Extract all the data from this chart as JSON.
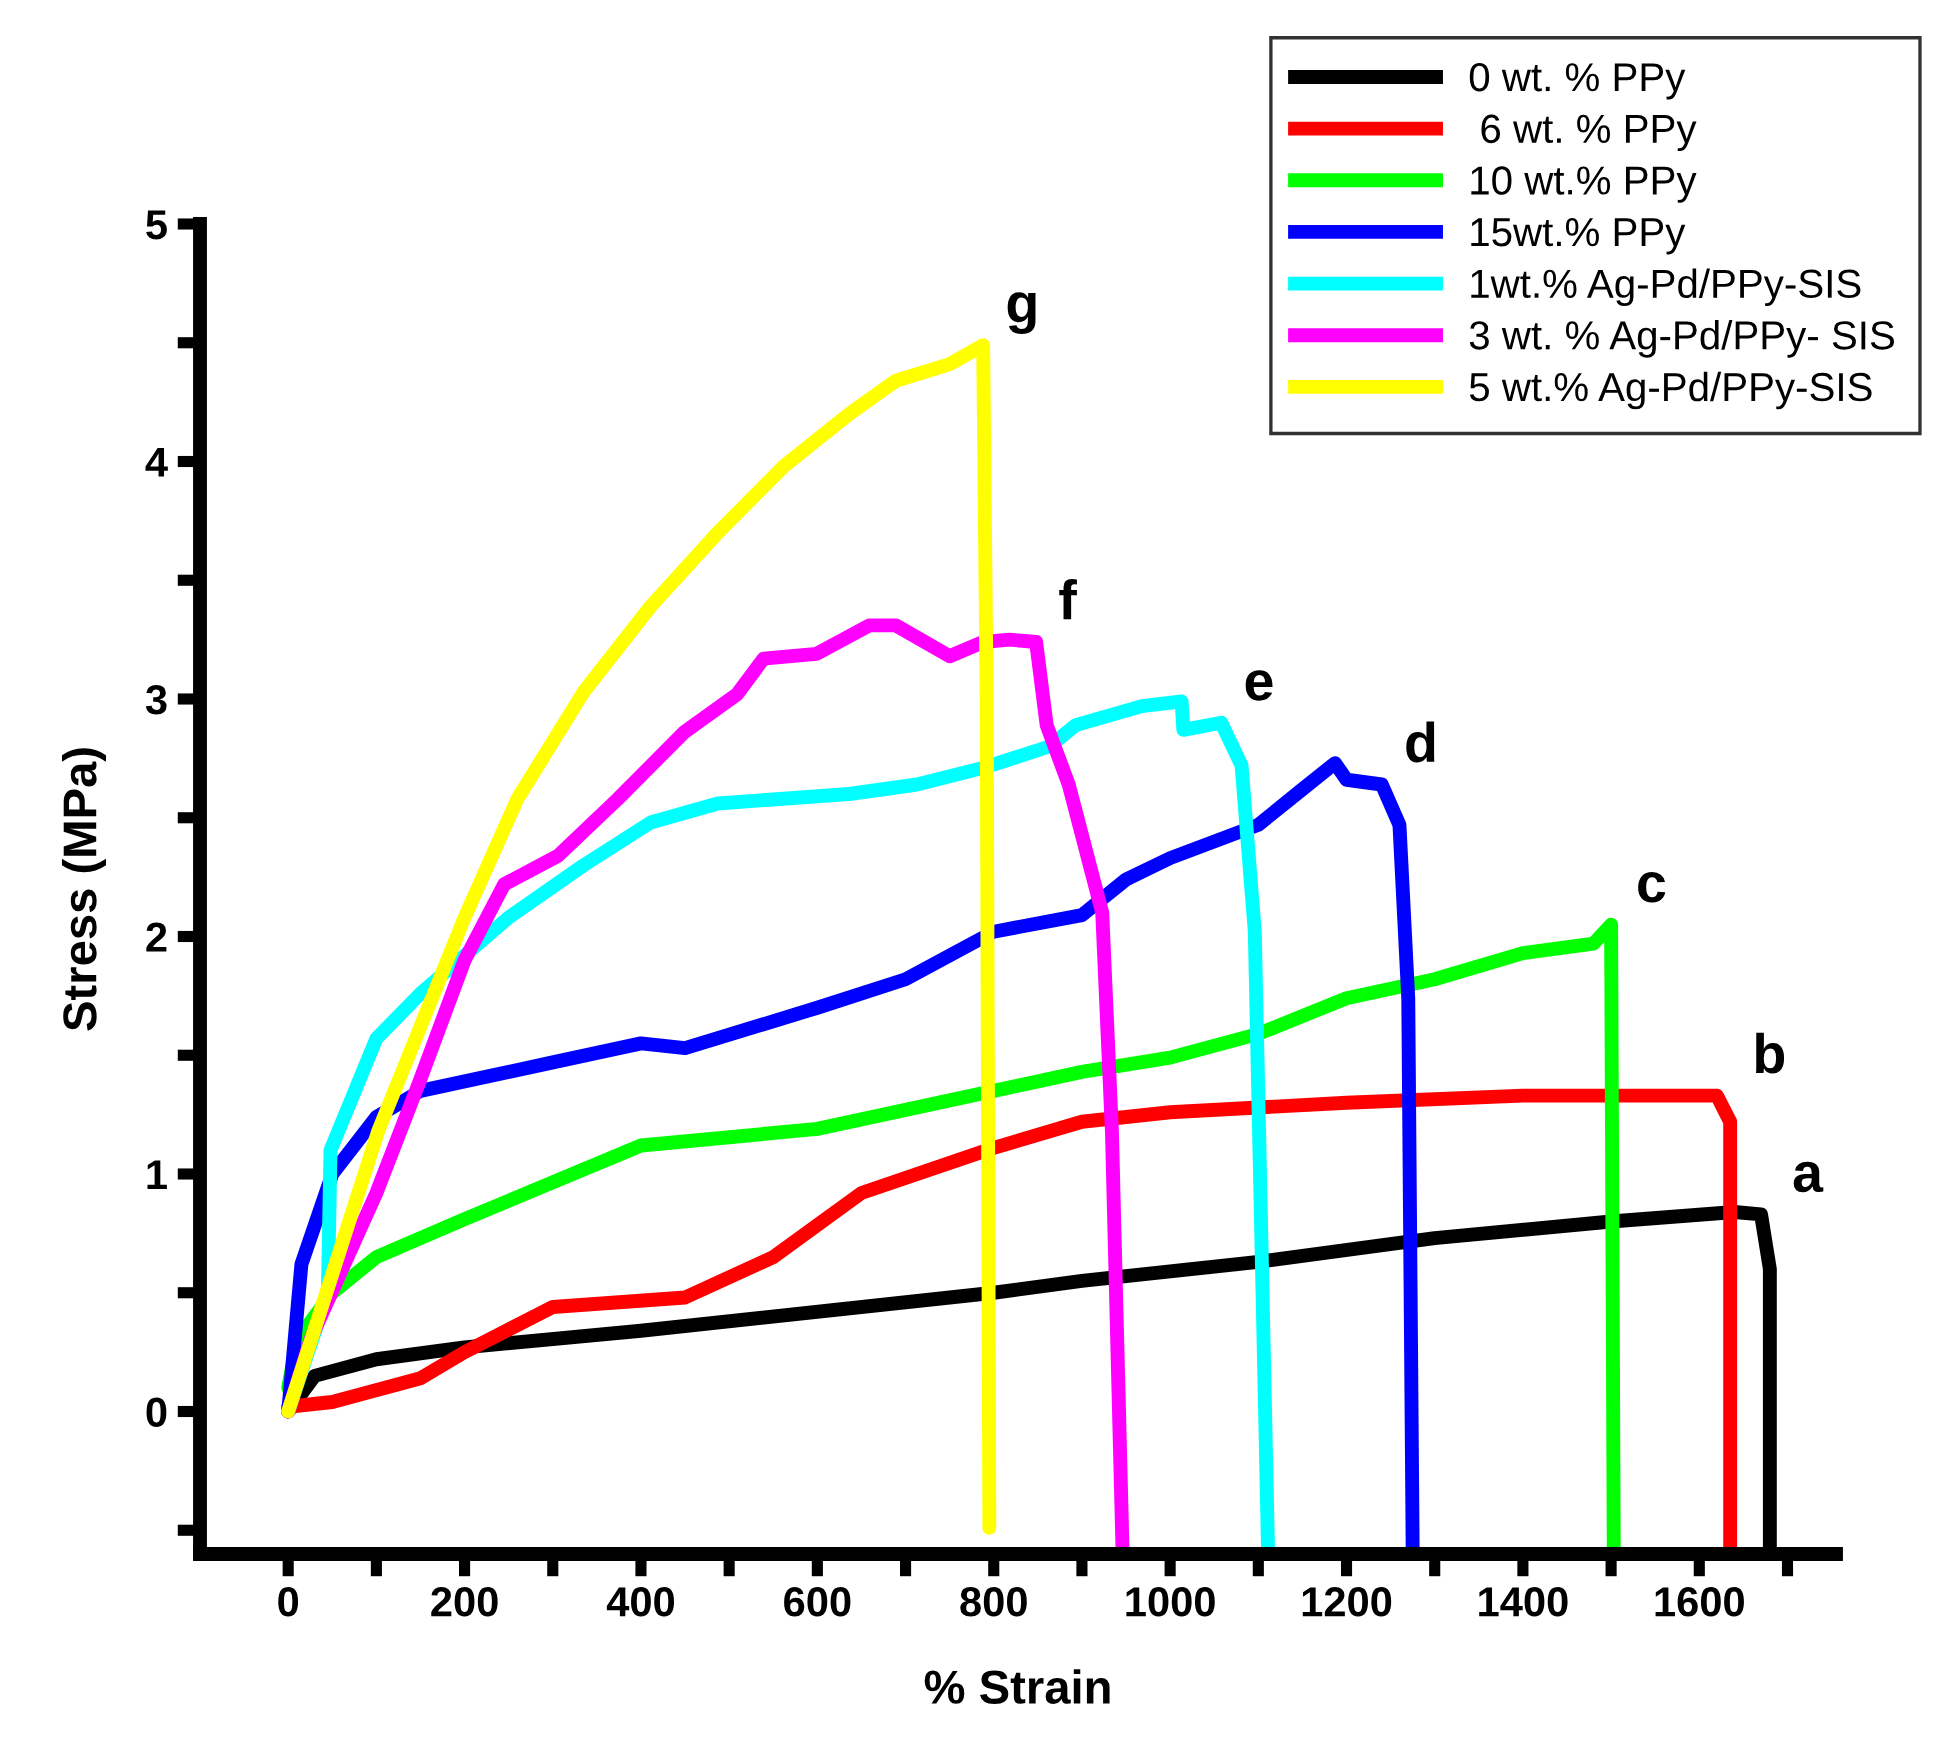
{
  "chart_data": {
    "type": "line",
    "xlabel": "% Strain",
    "ylabel": "Stress (MPa)",
    "xlim": [
      -100,
      1755
    ],
    "ylim": [
      -0.6,
      5
    ],
    "xticks": [
      0,
      {
        "value": 100,
        "label": null
      },
      200,
      {
        "value": 300,
        "label": null
      },
      400,
      {
        "value": 500,
        "label": null
      },
      600,
      {
        "value": 700,
        "label": null
      },
      800,
      {
        "value": 900,
        "label": null
      },
      1000,
      {
        "value": 1100,
        "label": null
      },
      1200,
      {
        "value": 1300,
        "label": null
      },
      1400,
      {
        "value": 1500,
        "label": null
      },
      1600,
      {
        "value": 1700,
        "label": null
      }
    ],
    "yticks": [
      {
        "value": -0.5,
        "label": null
      },
      0,
      {
        "value": 0.5,
        "label": null
      },
      1,
      {
        "value": 1.5,
        "label": null
      },
      2,
      {
        "value": 2.5,
        "label": null
      },
      3,
      {
        "value": 3.5,
        "label": null
      },
      4,
      {
        "value": 4.5,
        "label": null
      },
      5
    ],
    "grid": false,
    "legend": "top right",
    "marker": "none",
    "line_style": "solid",
    "series": [
      {
        "name": "0 wt. % PPy",
        "color": "#000000",
        "x": [
          0,
          30,
          100,
          200,
          400,
          800,
          900,
          1100,
          1300,
          1500,
          1640,
          1670,
          1680,
          1680
        ],
        "values": [
          0,
          0.15,
          0.22,
          0.27,
          0.34,
          0.5,
          0.55,
          0.63,
          0.73,
          0.8,
          0.84,
          0.83,
          0.6,
          -0.58
        ]
      },
      {
        "name": " 6 wt. % PPy",
        "color": "#ff0000",
        "x": [
          0,
          50,
          150,
          200,
          300,
          450,
          550,
          650,
          800,
          900,
          1000,
          1200,
          1400,
          1620,
          1635,
          1635
        ],
        "values": [
          0.02,
          0.04,
          0.14,
          0.25,
          0.44,
          0.48,
          0.65,
          0.92,
          1.11,
          1.22,
          1.26,
          1.3,
          1.33,
          1.33,
          1.22,
          -0.58
        ]
      },
      {
        "name": "10 wt.% PPy",
        "color": "#00ff00",
        "x": [
          0,
          10,
          50,
          100,
          200,
          400,
          600,
          800,
          900,
          1000,
          1100,
          1200,
          1300,
          1400,
          1480,
          1500,
          1503
        ],
        "values": [
          0.1,
          0.3,
          0.5,
          0.65,
          0.81,
          1.12,
          1.19,
          1.35,
          1.43,
          1.49,
          1.59,
          1.74,
          1.82,
          1.93,
          1.97,
          2.05,
          -0.58
        ]
      },
      {
        "name": "15wt.% PPy",
        "color": "#0000ff",
        "x": [
          0,
          15,
          50,
          100,
          150,
          300,
          400,
          450,
          600,
          700,
          800,
          900,
          950,
          1000,
          1100,
          1150,
          1187,
          1200,
          1240,
          1260,
          1270,
          1275
        ],
        "values": [
          0,
          0.62,
          1.0,
          1.24,
          1.35,
          1.47,
          1.55,
          1.53,
          1.7,
          1.82,
          2.02,
          2.09,
          2.24,
          2.33,
          2.47,
          2.62,
          2.73,
          2.66,
          2.64,
          2.47,
          1.74,
          -0.58
        ]
      },
      {
        "name": "1wt.% Ag-Pd/PPy-SIS",
        "color": "#00ffff",
        "x": [
          0,
          45,
          48,
          100,
          150,
          250,
          335,
          411,
          487,
          636,
          713,
          788,
          863,
          893,
          968,
          1013,
          1015,
          1058,
          1081,
          1096,
          1111
        ],
        "values": [
          0,
          0.5,
          1.1,
          1.57,
          1.76,
          2.08,
          2.3,
          2.48,
          2.56,
          2.6,
          2.64,
          2.71,
          2.8,
          2.89,
          2.97,
          2.99,
          2.87,
          2.9,
          2.72,
          2.02,
          -0.58
        ]
      },
      {
        "name": "3 wt. % Ag-Pd/PPy- SIS",
        "color": "#ff00ff",
        "x": [
          0,
          26,
          100,
          150,
          200,
          245,
          306,
          374,
          449,
          509,
          539,
          599,
          659,
          689,
          750,
          788,
          818,
          848,
          860,
          885,
          923,
          934,
          946
        ],
        "values": [
          0,
          0.31,
          0.92,
          1.4,
          1.9,
          2.22,
          2.34,
          2.58,
          2.86,
          3.02,
          3.17,
          3.19,
          3.31,
          3.31,
          3.18,
          3.24,
          3.25,
          3.24,
          2.89,
          2.64,
          2.1,
          1.18,
          -0.58
        ]
      },
      {
        "name": "5 wt.% Ag-Pd/PPy-SIS",
        "color": "#ffff00",
        "x": [
          0,
          102,
          200,
          260,
          335,
          411,
          487,
          562,
          636,
          689,
          750,
          788,
          792,
          795
        ],
        "values": [
          0,
          1.18,
          2.08,
          2.58,
          3.03,
          3.39,
          3.7,
          3.98,
          4.2,
          4.34,
          4.41,
          4.49,
          3.0,
          -0.49
        ]
      }
    ],
    "annotations": [
      {
        "text": "a",
        "x": 1680,
        "y": 0.83
      },
      {
        "text": "b",
        "x": 1635,
        "y": 1.33
      },
      {
        "text": "c",
        "x": 1503,
        "y": 2.05
      },
      {
        "text": "d",
        "x": 1240,
        "y": 2.64
      },
      {
        "text": "e",
        "x": 1058,
        "y": 2.9
      },
      {
        "text": "f",
        "x": 848,
        "y": 3.24
      },
      {
        "text": "g",
        "x": 788,
        "y": 4.49
      }
    ]
  }
}
